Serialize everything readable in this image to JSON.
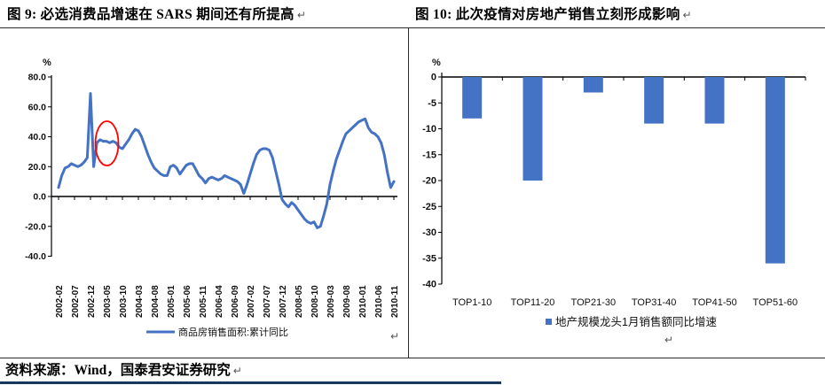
{
  "marks": {
    "return": "↵"
  },
  "figure9": {
    "title": "图 9: 必选消费品增速在 SARS 期间还有所提高",
    "unit_label": "%",
    "legend": "商品房销售面积:累计同比"
  },
  "figure10": {
    "title": "图 10: 此次疫情对房地产销售立刻形成影响",
    "unit_label": "%",
    "legend": "地产规模龙头1月销售额同比增速"
  },
  "source": {
    "text": "资料来源：Wind，国泰君安证券研究"
  },
  "colors": {
    "series_blue": "#4472C4",
    "highlight_red": "#FF0000",
    "accent_navy": "#17375E"
  },
  "chart_data": [
    {
      "type": "line",
      "title": "图 9: 必选消费品增速在 SARS 期间还有所提高",
      "ylabel": "%",
      "ylim": [
        -40,
        80
      ],
      "ytick_labels": [
        "80.0",
        "60.0",
        "40.0",
        "20.0",
        "0.0",
        "-20.0",
        "-40.0"
      ],
      "grid": false,
      "legend_position": "bottom",
      "x_frequency": "monthly",
      "x_start": "2002-02",
      "x_end": "2010-11",
      "xtick_labels": [
        "2002-02",
        "2002-07",
        "2002-12",
        "2003-05",
        "2003-10",
        "2004-03",
        "2004-08",
        "2005-01",
        "2005-06",
        "2005-11",
        "2006-04",
        "2006-09",
        "2007-02",
        "2007-07",
        "2007-12",
        "2008-05",
        "2008-10",
        "2009-03",
        "2009-08",
        "2010-01",
        "2010-06",
        "2010-11"
      ],
      "series": [
        {
          "name": "商品房销售面积:累计同比",
          "color": "#4472C4",
          "values": [
            6,
            14,
            19,
            20,
            22,
            21,
            20,
            21,
            23,
            26,
            69,
            20,
            36,
            38,
            37,
            37,
            36,
            37,
            36,
            33,
            32,
            35,
            38,
            42,
            45,
            44,
            40,
            34,
            28,
            23,
            19,
            17,
            15,
            14,
            14,
            20,
            21,
            19,
            15,
            18,
            21,
            22,
            22,
            18,
            14,
            12,
            9,
            12,
            13,
            12,
            11,
            12,
            14,
            13,
            12,
            11,
            10,
            8,
            2,
            8,
            15,
            22,
            28,
            31,
            32,
            32,
            31,
            26,
            17,
            8,
            -2,
            -5,
            -7,
            -4,
            -6,
            -9,
            -12,
            -15,
            -17,
            -18,
            -17,
            -21,
            -20,
            -13,
            -5,
            8,
            17,
            25,
            31,
            37,
            42,
            44,
            46,
            48,
            50,
            51,
            52,
            46,
            43,
            42,
            40,
            36,
            28,
            16,
            6,
            10
          ]
        }
      ],
      "annotation": {
        "shape": "ellipse",
        "color": "#FF0000",
        "highlight": "SARS 期间 (约 2003-03 至 2003-09) 的增速平台"
      }
    },
    {
      "type": "bar",
      "title": "图 10: 此次疫情对房地产销售立刻形成影响",
      "ylabel": "%",
      "ylim": [
        -40,
        0
      ],
      "ytick_step": 5,
      "grid": false,
      "legend_position": "bottom",
      "categories": [
        "TOP1-10",
        "TOP11-20",
        "TOP21-30",
        "TOP31-40",
        "TOP41-50",
        "TOP51-60"
      ],
      "values": [
        -8,
        -20,
        -3,
        -9,
        -9,
        -36
      ],
      "legend": "地产规模龙头1月销售额同比增速",
      "bar_color": "#4472C4"
    }
  ]
}
